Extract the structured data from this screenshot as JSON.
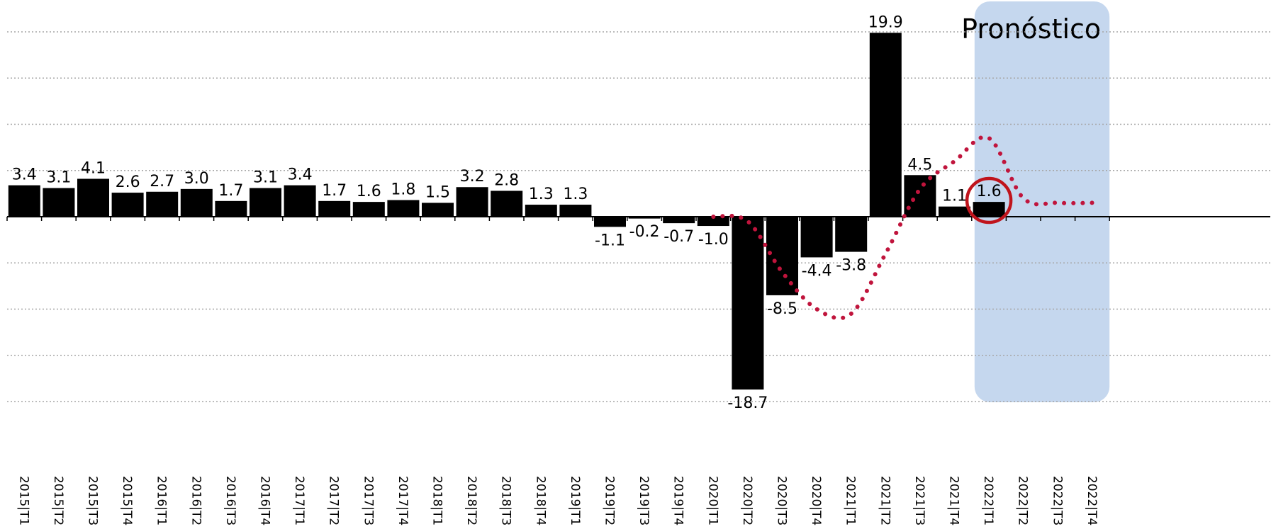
{
  "chart_data": {
    "type": "bar",
    "categories": [
      "2015|T1",
      "2015|T2",
      "2015|T3",
      "2015|T4",
      "2016|T1",
      "2016|T2",
      "2016|T3",
      "2016|T4",
      "2017|T1",
      "2017|T2",
      "2017|T3",
      "2017|T4",
      "2018|T1",
      "2018|T2",
      "2018|T3",
      "2018|T4",
      "2019|T1",
      "2019|T2",
      "2019|T3",
      "2019|T4",
      "2020|T1",
      "2020|T2",
      "2020|T3",
      "2020|T4",
      "2021|T1",
      "2021|T2",
      "2021|T3",
      "2021|T4",
      "2022|T1",
      "2022|T2",
      "2022|T3",
      "2022|T4"
    ],
    "values": [
      3.4,
      3.1,
      4.1,
      2.6,
      2.7,
      3.0,
      1.7,
      3.1,
      3.4,
      1.7,
      1.6,
      1.8,
      1.5,
      3.2,
      2.8,
      1.3,
      1.3,
      -1.1,
      -0.2,
      -0.7,
      -1.0,
      -18.7,
      -8.5,
      -4.4,
      -3.8,
      19.9,
      4.5,
      1.1,
      1.6,
      null,
      null,
      null
    ],
    "data_labels": [
      "3.4",
      "3.1",
      "4.1",
      "2.6",
      "2.7",
      "3.0",
      "1.7",
      "3.1",
      "3.4",
      "1.7",
      "1.6",
      "1.8",
      "1.5",
      "3.2",
      "2.8",
      "1.3",
      "1.3",
      "-1.1",
      "-0.2",
      "-0.7",
      "-1.0",
      "-18.7",
      "-8.5",
      "-4.4",
      "-3.8",
      "19.9",
      "4.5",
      "1.1",
      "1.6",
      "",
      "",
      ""
    ],
    "trend_series": {
      "style": "dotted",
      "color": "#c0143c",
      "x": [
        "2020|T1",
        "2020|T2",
        "2020|T3",
        "2020|T4",
        "2021|T1",
        "2021|T2",
        "2021|T3",
        "2021|T4",
        "2022|T1",
        "2022|T2",
        "2022|T3",
        "2022|T4"
      ],
      "values": [
        0.0,
        -0.5,
        -6.0,
        -10.0,
        -10.5,
        -4.0,
        3.0,
        6.0,
        8.5,
        2.0,
        1.5,
        1.5
      ]
    },
    "forecast_region": {
      "label": "Pronóstico",
      "from": "2022|T1",
      "to": "2022|T4",
      "color": "#c5d7ee"
    },
    "highlight": {
      "category": "2022|T1",
      "shape": "circle",
      "color": "#c0141c"
    },
    "ylim": [
      -20,
      20
    ],
    "gridlines": [
      20,
      15,
      10,
      5,
      -5,
      -10,
      -15,
      -20
    ],
    "grid": true,
    "bar_color": "#000000",
    "title": "",
    "xlabel": "",
    "ylabel": ""
  }
}
